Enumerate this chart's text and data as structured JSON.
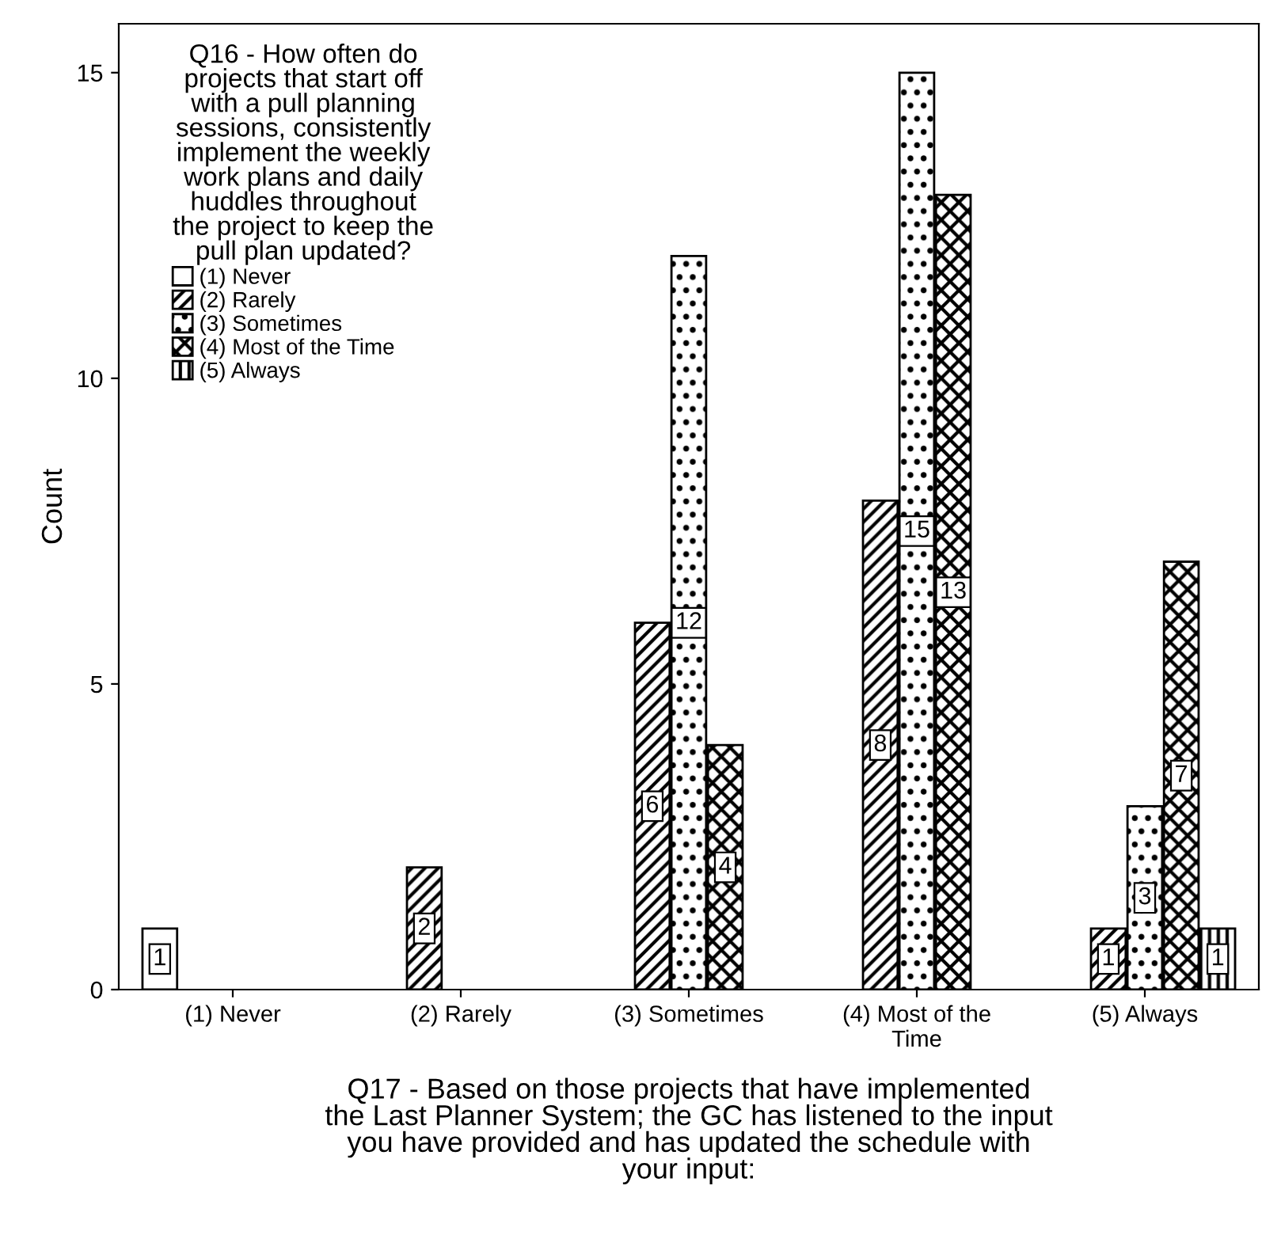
{
  "chart_data": {
    "type": "bar",
    "categories": [
      "(1) Never",
      "(2) Rarely",
      "(3) Sometimes",
      "(4) Most of the\nTime",
      "(5) Always"
    ],
    "series": [
      {
        "name": "(1) Never",
        "color": "#ffffff",
        "values": [
          1,
          null,
          null,
          null,
          null
        ]
      },
      {
        "name": "(2) Rarely",
        "color": "#000000",
        "values": [
          null,
          2,
          6,
          8,
          1
        ]
      },
      {
        "name": "(3) Sometimes",
        "color": "#000000",
        "values": [
          null,
          null,
          12,
          15,
          3
        ]
      },
      {
        "name": "(4) Most of the Time",
        "color": "#000000",
        "values": [
          null,
          null,
          4,
          13,
          7
        ]
      },
      {
        "name": "(5) Always",
        "color": "#000000",
        "values": [
          null,
          null,
          null,
          null,
          1
        ]
      }
    ],
    "legend_title": "Q16 - How often do\nprojects that start off\nwith a pull planning\nsessions, consistently\nimplement the weekly\nwork plans and daily\nhuddles throughout\nthe project to keep the\npull plan updated?",
    "xlabel": "Q17 - Based on those projects that have implemented\nthe Last Planner System; the GC has listened to the input\nyou have provided and has updated the schedule with\nyour input:",
    "ylabel": "Count",
    "ylim": [
      0,
      15.8
    ],
    "yticks": [
      0,
      5,
      10,
      15
    ],
    "grid": false,
    "legend": "top left",
    "data_labels": true
  }
}
